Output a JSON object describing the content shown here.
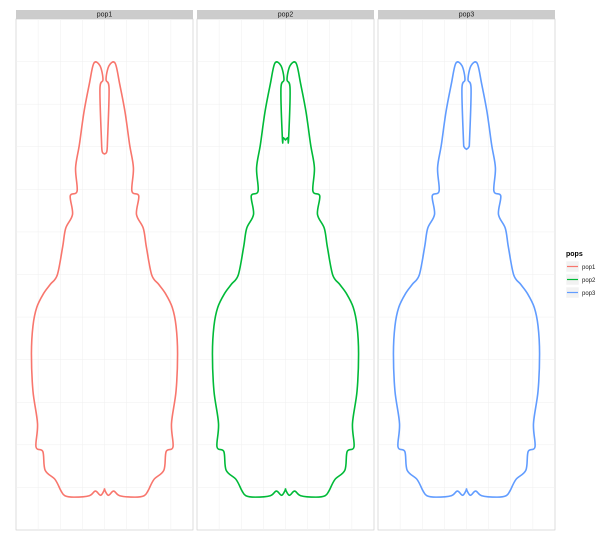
{
  "chart_data": {
    "type": "line",
    "facet_by": "pops",
    "panels": [
      {
        "strip_label": "pop1",
        "color": "#F8766D"
      },
      {
        "strip_label": "pop2",
        "color": "#00BA38"
      },
      {
        "strip_label": "pop3",
        "color": "#619CFF"
      }
    ],
    "legend": {
      "title": "pops",
      "position": "right",
      "entries": [
        {
          "label": "pop1",
          "color": "#F8766D"
        },
        {
          "label": "pop2",
          "color": "#00BA38"
        },
        {
          "label": "pop3",
          "color": "#619CFF"
        }
      ]
    },
    "x_range": [
      -1,
      1
    ],
    "y_range": [
      0,
      1
    ],
    "grid": true,
    "title": "",
    "xlabel": "",
    "ylabel": "",
    "outline": {
      "right_side": [
        [
          0.02,
          0.93
        ],
        [
          0.06,
          0.96
        ],
        [
          0.14,
          0.965
        ],
        [
          0.2,
          0.92
        ],
        [
          0.27,
          0.86
        ],
        [
          0.33,
          0.79
        ],
        [
          0.38,
          0.74
        ],
        [
          0.36,
          0.69
        ],
        [
          0.45,
          0.68
        ],
        [
          0.42,
          0.64
        ],
        [
          0.51,
          0.61
        ],
        [
          0.55,
          0.57
        ],
        [
          0.62,
          0.51
        ],
        [
          0.71,
          0.49
        ],
        [
          0.8,
          0.47
        ],
        [
          0.89,
          0.44
        ],
        [
          0.94,
          0.4
        ],
        [
          0.96,
          0.34
        ],
        [
          0.94,
          0.26
        ],
        [
          0.88,
          0.19
        ],
        [
          0.9,
          0.14
        ],
        [
          0.81,
          0.13
        ],
        [
          0.78,
          0.09
        ],
        [
          0.65,
          0.07
        ],
        [
          0.57,
          0.045
        ],
        [
          0.52,
          0.035
        ],
        [
          0.4,
          0.032
        ],
        [
          0.2,
          0.035
        ],
        [
          0.12,
          0.045
        ],
        [
          0.05,
          0.036
        ],
        [
          0.0,
          0.048
        ]
      ],
      "notch": [
        [
          0.06,
          0.91
        ],
        [
          0.04,
          0.8
        ],
        [
          0.03,
          0.77
        ],
        [
          0.0,
          0.77
        ]
      ],
      "notch_depth_by_panel": [
        0.77,
        0.8,
        0.78
      ]
    }
  }
}
